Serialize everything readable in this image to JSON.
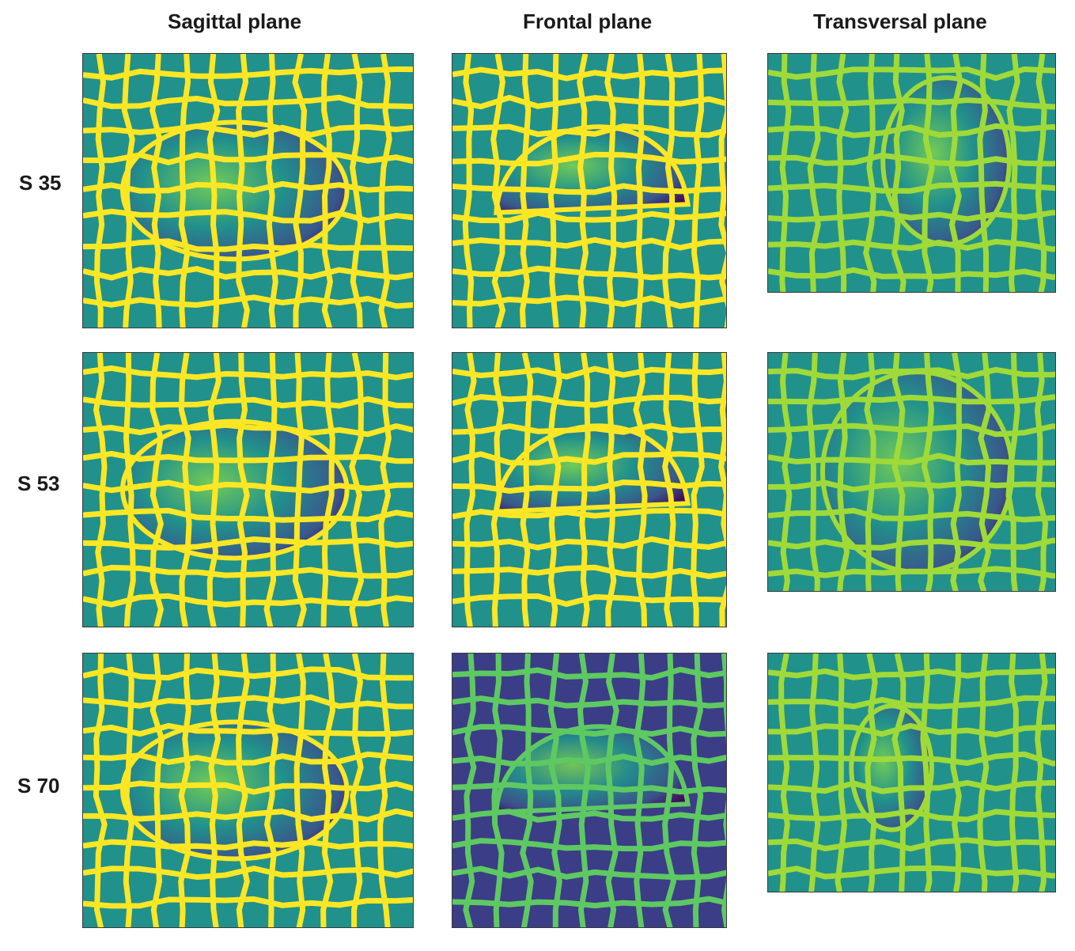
{
  "columns": [
    {
      "label": "Sagittal plane"
    },
    {
      "label": "Frontal plane"
    },
    {
      "label": "Transversal plane"
    }
  ],
  "rows": [
    {
      "label": "S 35"
    },
    {
      "label": "S 53"
    },
    {
      "label": "S 70"
    }
  ],
  "colors": {
    "background_teal": "#21918c",
    "background_purple": "#3b3d87",
    "boundary_yellow": "#fde725",
    "boundary_green": "#5ec962",
    "boundary_lightgreen": "#a0da39",
    "dark_purple": "#440154",
    "blue": "#3b528b",
    "light_green": "#7ad151"
  },
  "panels": [
    {
      "name": "sagittal-s35",
      "bg": "background_teal",
      "line": "boundary_yellow",
      "blob": "ellipse"
    },
    {
      "name": "frontal-s35",
      "bg": "background_teal",
      "line": "boundary_yellow",
      "blob": "dome"
    },
    {
      "name": "transversal-s35",
      "bg": "background_teal",
      "line": "boundary_lightgreen",
      "blob": "side"
    },
    {
      "name": "sagittal-s53",
      "bg": "background_teal",
      "line": "boundary_yellow",
      "blob": "ellipse"
    },
    {
      "name": "frontal-s53",
      "bg": "background_teal",
      "line": "boundary_yellow",
      "blob": "dome"
    },
    {
      "name": "transversal-s53",
      "bg": "background_teal",
      "line": "boundary_lightgreen",
      "blob": "circle"
    },
    {
      "name": "sagittal-s70",
      "bg": "background_teal",
      "line": "boundary_yellow",
      "blob": "ellipse"
    },
    {
      "name": "frontal-s70",
      "bg": "background_purple",
      "line": "boundary_green",
      "blob": "dome"
    },
    {
      "name": "transversal-s70",
      "bg": "background_teal",
      "line": "boundary_lightgreen",
      "blob": "small"
    }
  ]
}
